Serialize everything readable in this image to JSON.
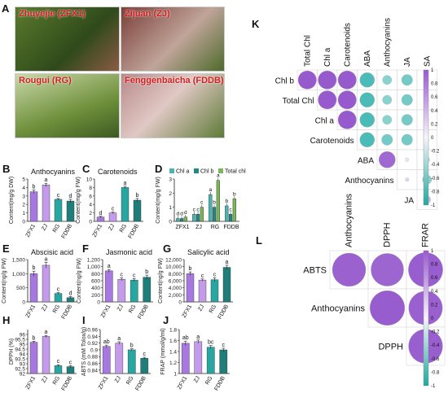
{
  "panels": {
    "a": "A"
  },
  "photos": [
    "Zhuyejie (ZFX1)",
    "Zijuan (ZJ)",
    "Rougui (RG)",
    "Fenggenbaicha (FDDB)"
  ],
  "colors": {
    "zfx1": "#a779e0",
    "zj": "#c39bea",
    "rg": "#27a6a2",
    "fddb": "#1f7e7a",
    "chla": "#4bb4b0",
    "chlb": "#1f8a86",
    "total": "#7cb65a"
  },
  "chart_data": [
    {
      "id": "B",
      "type": "bar",
      "title": "Anthocyanins",
      "ylabel": "Content(mg/g DW)",
      "categories": [
        "ZFX1",
        "ZJ",
        "RG",
        "FDDB"
      ],
      "values": [
        3.5,
        4.3,
        2.6,
        2.4
      ],
      "errors": [
        0.2,
        0.2,
        0.1,
        0.2
      ],
      "letters": [
        "b",
        "a",
        "c",
        "d"
      ],
      "ylim": [
        0,
        5
      ],
      "ticks": [
        0,
        1,
        2,
        3,
        4,
        5
      ]
    },
    {
      "id": "C",
      "type": "bar",
      "title": "Carotenoids",
      "ylabel": "Content(mg/g FW)",
      "categories": [
        "ZFX1",
        "ZJ",
        "RG",
        "FDDB"
      ],
      "values": [
        1.0,
        2.0,
        8.0,
        5.0
      ],
      "errors": [
        0.2,
        0.2,
        0.3,
        0.4
      ],
      "letters": [
        "d",
        "c",
        "a",
        "b"
      ],
      "ylim": [
        0,
        10
      ],
      "ticks": [
        0,
        2,
        4,
        6,
        8,
        10
      ]
    },
    {
      "id": "D",
      "type": "bar",
      "title": "",
      "ylabel": "Content(mg/g FW)",
      "categories": [
        "ZFX1",
        "ZJ",
        "RG",
        "FDDB"
      ],
      "legend": [
        "Chl a",
        "Chl b",
        "Total chl"
      ],
      "series": [
        {
          "name": "Chl a",
          "values": [
            0.2,
            0.5,
            1.9,
            1.1
          ]
        },
        {
          "name": "Chl b",
          "values": [
            0.2,
            0.5,
            1.0,
            0.5
          ]
        },
        {
          "name": "Total chl",
          "values": [
            0.3,
            1.0,
            2.9,
            1.6
          ]
        }
      ],
      "letters": [
        [
          "d",
          "d",
          "d"
        ],
        [
          "c",
          "c",
          "c"
        ],
        [
          "a",
          "b",
          "a"
        ],
        [
          "b",
          "c",
          "b"
        ]
      ],
      "ylim": [
        0,
        3
      ],
      "ticks": [
        0,
        1,
        2,
        3
      ]
    },
    {
      "id": "E",
      "type": "bar",
      "title": "Abscisic acid",
      "ylabel": "Content(ng/g FW)",
      "categories": [
        "ZFX1",
        "ZJ",
        "RG",
        "FDDB"
      ],
      "values": [
        1000,
        1300,
        300,
        150
      ],
      "errors": [
        90,
        100,
        30,
        40
      ],
      "letters": [
        "b",
        "a",
        "c",
        "d"
      ],
      "ylim": [
        0,
        1500
      ],
      "ticks": [
        0,
        500,
        1000,
        1500
      ]
    },
    {
      "id": "F",
      "type": "bar",
      "title": "Jasmonic acid",
      "ylabel": "Content(ng/g FW)",
      "categories": [
        "ZFX1",
        "ZJ",
        "RG",
        "FDDB"
      ],
      "values": [
        880,
        640,
        620,
        700
      ],
      "errors": [
        40,
        40,
        40,
        60
      ],
      "letters": [
        "a",
        "c",
        "c",
        "b"
      ],
      "ylim": [
        0,
        1200
      ],
      "ticks": [
        0,
        200,
        400,
        600,
        800,
        1000,
        1200
      ]
    },
    {
      "id": "G",
      "type": "bar",
      "title": "Salicylic acid",
      "ylabel": "Content(ng/g FW)",
      "categories": [
        "ZFX1",
        "ZJ",
        "RG",
        "FDDB"
      ],
      "values": [
        8000,
        6200,
        6300,
        9800
      ],
      "errors": [
        500,
        300,
        500,
        600
      ],
      "letters": [
        "b",
        "c",
        "c",
        "a"
      ],
      "ylim": [
        0,
        12000
      ],
      "ticks": [
        0,
        2000,
        4000,
        6000,
        8000,
        10000,
        12000
      ]
    },
    {
      "id": "H",
      "type": "bar",
      "title": "",
      "ylabel": "DPPH (%)",
      "categories": [
        "ZFX1",
        "ZJ",
        "RG",
        "FDDB"
      ],
      "values": [
        95.2,
        95.8,
        92.8,
        92.7
      ],
      "errors": [
        0.1,
        0.1,
        0.1,
        0.1
      ],
      "letters": [
        "b",
        "a",
        "c",
        "c"
      ],
      "ylim": [
        92,
        96.5
      ],
      "ticks": [
        92,
        92.5,
        93,
        93.5,
        94,
        94.5,
        95,
        95.5,
        96
      ]
    },
    {
      "id": "I",
      "type": "bar",
      "title": "",
      "ylabel": "ABTS (mM Tolox/g)",
      "categories": [
        "ZFX1",
        "ZJ",
        "RG",
        "FDDB"
      ],
      "values": [
        0.91,
        0.92,
        0.9,
        0.875
      ],
      "errors": [
        0.004,
        0.004,
        0.003,
        0.003
      ],
      "letters": [
        "ab",
        "a",
        "b",
        "c"
      ],
      "ylim": [
        0.83,
        0.96
      ],
      "ticks": [
        0.84,
        0.86,
        0.88,
        0.9,
        0.92,
        0.94,
        0.96
      ]
    },
    {
      "id": "J",
      "type": "bar",
      "title": "",
      "ylabel": "FRAP (mmol/g/ml)",
      "categories": [
        "ZFX1",
        "ZJ",
        "RG",
        "FDDB"
      ],
      "values": [
        1.55,
        1.58,
        1.48,
        1.43
      ],
      "errors": [
        0.04,
        0.03,
        0.03,
        0.03
      ],
      "letters": [
        "ab",
        "a",
        "bc",
        "c"
      ],
      "ylim": [
        1.0,
        1.8
      ],
      "ticks": [
        1.0,
        1.2,
        1.4,
        1.6,
        1.8
      ]
    },
    {
      "id": "K",
      "type": "heatmap",
      "labels_top": [
        "Total Chl",
        "Chl a",
        "Carotenoids",
        "ABA",
        "Anthocyanins",
        "JA",
        "SA"
      ],
      "labels_left": [
        "Chl b",
        "Total Chl",
        "Chl a",
        "Carotenoids",
        "ABA",
        "Anthocyanins",
        "JA"
      ],
      "matrix": [
        [
          1,
          1,
          1,
          -0.8,
          -0.5,
          -0.6,
          -0.1
        ],
        [
          null,
          1,
          1,
          -0.8,
          -0.5,
          -0.6,
          -0.1
        ],
        [
          null,
          null,
          1,
          -0.8,
          -0.5,
          -0.6,
          -0.1
        ],
        [
          null,
          null,
          null,
          -0.8,
          -0.6,
          -0.6,
          -0.1
        ],
        [
          null,
          null,
          null,
          null,
          0.9,
          0.1,
          -0.3
        ],
        [
          null,
          null,
          null,
          null,
          null,
          0.2,
          -0.5
        ],
        [
          null,
          null,
          null,
          null,
          null,
          null,
          0.4
        ]
      ],
      "colorbar": [
        1,
        0.8,
        0.6,
        0.4,
        0.2,
        0,
        -0.2,
        -0.4,
        -0.6,
        -0.8,
        -1
      ]
    },
    {
      "id": "L",
      "type": "heatmap",
      "labels_top": [
        "Anthocyanins",
        "DPPH",
        "FRAR"
      ],
      "labels_left": [
        "ABTS",
        "Anthocyanins",
        "DPPH"
      ],
      "matrix": [
        [
          0.95,
          0.93,
          0.98
        ],
        [
          null,
          0.99,
          0.96
        ],
        [
          null,
          null,
          0.97
        ]
      ],
      "colorbar": [
        1,
        0.8,
        0.6,
        0.4,
        0.2,
        0,
        -0.2,
        -0.4,
        -0.6,
        -0.8,
        -1
      ]
    }
  ]
}
